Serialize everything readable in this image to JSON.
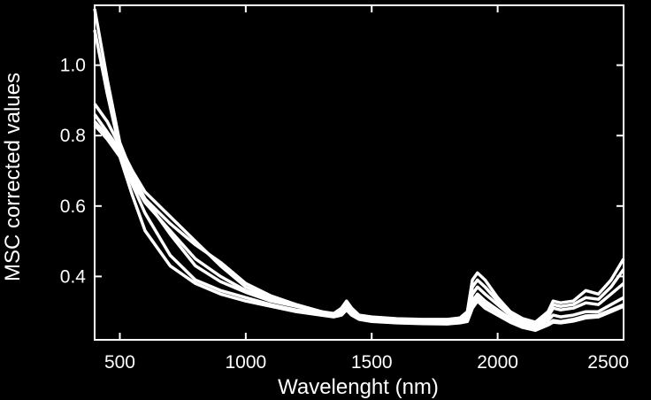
{
  "chart_data": {
    "type": "line",
    "title": "",
    "xlabel": "Wavelenght (nm)",
    "ylabel": "MSC corrected values",
    "xlim": [
      400,
      2500
    ],
    "ylim": [
      0.22,
      1.17
    ],
    "xticks": [
      500,
      1000,
      1500,
      2000,
      2500
    ],
    "xtick_labels": [
      "500",
      "1000",
      "1500",
      "2000",
      "2500"
    ],
    "yticks": [
      0.4,
      0.6,
      0.8,
      1.0
    ],
    "ytick_labels": [
      "0.4",
      "0.6",
      "0.8",
      "1.0"
    ],
    "grid": false,
    "legend": "none",
    "colors": {
      "background": "#000000",
      "foreground": "#ffffff",
      "series": "#ffffff"
    },
    "x": [
      400,
      450,
      500,
      550,
      600,
      700,
      800,
      900,
      1000,
      1100,
      1200,
      1300,
      1350,
      1380,
      1400,
      1420,
      1450,
      1500,
      1600,
      1700,
      1800,
      1850,
      1880,
      1900,
      1920,
      1950,
      2000,
      2050,
      2100,
      2150,
      2200,
      2220,
      2250,
      2300,
      2350,
      2400,
      2450,
      2500
    ],
    "series": [
      {
        "values": [
          1.16,
          0.96,
          0.78,
          0.69,
          0.62,
          0.52,
          0.43,
          0.385,
          0.355,
          0.33,
          0.315,
          0.3,
          0.295,
          0.31,
          0.33,
          0.31,
          0.29,
          0.285,
          0.28,
          0.278,
          0.278,
          0.282,
          0.3,
          0.39,
          0.41,
          0.39,
          0.34,
          0.3,
          0.28,
          0.27,
          0.3,
          0.33,
          0.325,
          0.33,
          0.36,
          0.35,
          0.39,
          0.45
        ]
      },
      {
        "values": [
          1.1,
          0.92,
          0.76,
          0.67,
          0.61,
          0.53,
          0.45,
          0.4,
          0.36,
          0.335,
          0.315,
          0.3,
          0.293,
          0.305,
          0.325,
          0.305,
          0.288,
          0.283,
          0.278,
          0.276,
          0.276,
          0.28,
          0.29,
          0.37,
          0.39,
          0.37,
          0.33,
          0.295,
          0.275,
          0.265,
          0.29,
          0.32,
          0.315,
          0.32,
          0.34,
          0.335,
          0.37,
          0.42
        ]
      },
      {
        "values": [
          0.89,
          0.84,
          0.77,
          0.7,
          0.64,
          0.57,
          0.5,
          0.43,
          0.37,
          0.34,
          0.32,
          0.3,
          0.29,
          0.3,
          0.32,
          0.3,
          0.285,
          0.28,
          0.275,
          0.273,
          0.273,
          0.277,
          0.285,
          0.35,
          0.37,
          0.35,
          0.32,
          0.29,
          0.27,
          0.262,
          0.285,
          0.31,
          0.305,
          0.31,
          0.325,
          0.32,
          0.35,
          0.38
        ]
      },
      {
        "values": [
          0.86,
          0.81,
          0.76,
          0.68,
          0.62,
          0.55,
          0.49,
          0.44,
          0.38,
          0.345,
          0.32,
          0.3,
          0.29,
          0.295,
          0.315,
          0.295,
          0.282,
          0.277,
          0.272,
          0.27,
          0.27,
          0.274,
          0.28,
          0.33,
          0.35,
          0.33,
          0.305,
          0.28,
          0.262,
          0.255,
          0.275,
          0.29,
          0.285,
          0.29,
          0.3,
          0.3,
          0.32,
          0.34
        ]
      },
      {
        "values": [
          0.84,
          0.8,
          0.75,
          0.66,
          0.58,
          0.46,
          0.39,
          0.36,
          0.34,
          0.32,
          0.305,
          0.295,
          0.288,
          0.293,
          0.31,
          0.293,
          0.28,
          0.275,
          0.27,
          0.268,
          0.268,
          0.27,
          0.275,
          0.32,
          0.34,
          0.32,
          0.3,
          0.275,
          0.258,
          0.25,
          0.265,
          0.275,
          0.272,
          0.278,
          0.288,
          0.29,
          0.305,
          0.32
        ]
      },
      {
        "values": [
          0.83,
          0.79,
          0.74,
          0.63,
          0.53,
          0.43,
          0.38,
          0.35,
          0.33,
          0.315,
          0.3,
          0.29,
          0.285,
          0.29,
          0.305,
          0.29,
          0.278,
          0.272,
          0.268,
          0.266,
          0.265,
          0.268,
          0.272,
          0.31,
          0.33,
          0.31,
          0.29,
          0.27,
          0.255,
          0.247,
          0.262,
          0.27,
          0.268,
          0.273,
          0.282,
          0.285,
          0.3,
          0.315
        ]
      }
    ]
  }
}
